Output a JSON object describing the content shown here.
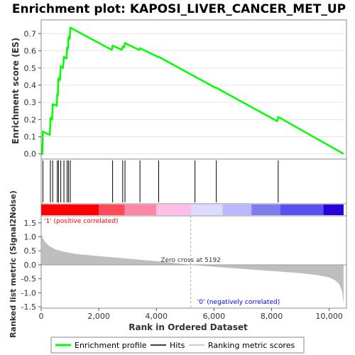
{
  "title": "Enrichment plot: KAPOSI_LIVER_CANCER_MET_UP",
  "colors": {
    "enrichment": "#00ff00",
    "hits": "#000000",
    "metric_fill": "#bebebe",
    "positive_label": "#ff0000",
    "negative_label": "#0000ff"
  },
  "chart_data": [
    {
      "type": "line",
      "name": "enrichment-profile",
      "ylabel": "Enrichment score (ES)",
      "xlim": [
        0,
        10600
      ],
      "ylim": [
        -0.03,
        0.78
      ],
      "yticks": [
        0.0,
        0.1,
        0.2,
        0.3,
        0.4,
        0.5,
        0.6,
        0.7
      ],
      "ytick_labels": [
        "0.0",
        "0.1",
        "0.2",
        "0.3",
        "0.4",
        "0.5",
        "0.6",
        "0.7"
      ],
      "points": [
        [
          0,
          0.0
        ],
        [
          40,
          0.0
        ],
        [
          60,
          0.13
        ],
        [
          300,
          0.11
        ],
        [
          320,
          0.21
        ],
        [
          380,
          0.2
        ],
        [
          400,
          0.29
        ],
        [
          540,
          0.28
        ],
        [
          560,
          0.35
        ],
        [
          580,
          0.34
        ],
        [
          600,
          0.44
        ],
        [
          650,
          0.43
        ],
        [
          680,
          0.51
        ],
        [
          760,
          0.5
        ],
        [
          790,
          0.565
        ],
        [
          880,
          0.555
        ],
        [
          900,
          0.62
        ],
        [
          930,
          0.61
        ],
        [
          950,
          0.68
        ],
        [
          990,
          0.67
        ],
        [
          1010,
          0.735
        ],
        [
          2450,
          0.605
        ],
        [
          2480,
          0.63
        ],
        [
          2800,
          0.605
        ],
        [
          2830,
          0.625
        ],
        [
          2880,
          0.62
        ],
        [
          2910,
          0.645
        ],
        [
          3400,
          0.605
        ],
        [
          3430,
          0.615
        ],
        [
          4050,
          0.565
        ],
        [
          4080,
          0.565
        ],
        [
          6050,
          0.385
        ],
        [
          6080,
          0.385
        ],
        [
          8200,
          0.19
        ],
        [
          8230,
          0.215
        ],
        [
          10500,
          0.0
        ]
      ]
    },
    {
      "type": "hits",
      "name": "hits",
      "xlim": [
        0,
        10600
      ],
      "positions": [
        60,
        320,
        400,
        560,
        600,
        680,
        790,
        900,
        950,
        1010,
        2480,
        2830,
        2910,
        3430,
        4080,
        5340,
        6080,
        8230
      ]
    },
    {
      "type": "area",
      "name": "ranked-list-metric",
      "xlabel": "Rank in Ordered Dataset",
      "ylabel": "Ranked list metric (Signal2Noise)",
      "xlim": [
        0,
        10600
      ],
      "ylim": [
        -1.55,
        1.75
      ],
      "xticks": [
        0,
        2000,
        4000,
        6000,
        8000,
        10000
      ],
      "xtick_labels": [
        "0",
        "2,000",
        "4,000",
        "6,000",
        "8,000",
        "10,000"
      ],
      "yticks": [
        -1.5,
        -1.0,
        -0.5,
        0.0,
        0.5,
        1.0,
        1.5
      ],
      "ytick_labels": [
        "-1.5",
        "-1.0",
        "-0.5",
        "0.0",
        "0.5",
        "1.0",
        "1.5"
      ],
      "points": [
        [
          0,
          1.2
        ],
        [
          30,
          1.05
        ],
        [
          80,
          0.9
        ],
        [
          150,
          0.8
        ],
        [
          300,
          0.65
        ],
        [
          500,
          0.55
        ],
        [
          800,
          0.46
        ],
        [
          1200,
          0.39
        ],
        [
          2000,
          0.31
        ],
        [
          3000,
          0.22
        ],
        [
          4000,
          0.13
        ],
        [
          5192,
          0.0
        ],
        [
          6000,
          -0.07
        ],
        [
          7000,
          -0.15
        ],
        [
          8000,
          -0.22
        ],
        [
          9000,
          -0.3
        ],
        [
          9600,
          -0.37
        ],
        [
          10000,
          -0.45
        ],
        [
          10200,
          -0.55
        ],
        [
          10350,
          -0.7
        ],
        [
          10450,
          -0.95
        ],
        [
          10500,
          -1.4
        ]
      ],
      "zero_cross": 5192,
      "zero_cross_label": "Zero cross at 5192",
      "positive_label": "'1' (positive correlated)",
      "negative_label": "'0' (negatively correlated)"
    }
  ],
  "heatmap_bar": {
    "xlim": [
      0,
      10600
    ],
    "segments": [
      {
        "start": 0,
        "end": 2000,
        "color": "#ff0000"
      },
      {
        "start": 2000,
        "end": 2900,
        "color": "#ff4a5a"
      },
      {
        "start": 2900,
        "end": 4000,
        "color": "#ff86a6"
      },
      {
        "start": 4000,
        "end": 5200,
        "color": "#ffbde8"
      },
      {
        "start": 5200,
        "end": 6300,
        "color": "#dcdaff"
      },
      {
        "start": 6300,
        "end": 7300,
        "color": "#bab7ff"
      },
      {
        "start": 7300,
        "end": 8300,
        "color": "#7d7df0"
      },
      {
        "start": 8300,
        "end": 9800,
        "color": "#5a4ff0"
      },
      {
        "start": 9800,
        "end": 10500,
        "color": "#2a00d8"
      }
    ]
  },
  "legend": {
    "items": [
      {
        "label": "Enrichment profile",
        "color": "#00ff00",
        "kind": "line-thick"
      },
      {
        "label": "Hits",
        "color": "#000000",
        "kind": "line-thin"
      },
      {
        "label": "Ranking metric scores",
        "color": "#bebebe",
        "kind": "line-thin"
      }
    ]
  }
}
